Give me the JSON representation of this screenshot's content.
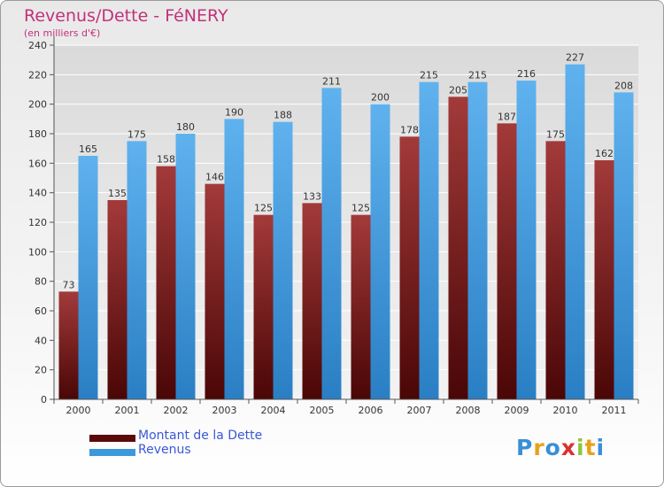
{
  "title": "Revenus/Dette - FéNERY",
  "subtitle": "(en milliers d'€)",
  "chart_data": {
    "type": "bar",
    "title": "Revenus/Dette - FéNERY",
    "ylabel": "(en milliers d'€)",
    "xlabel": "",
    "ylim": [
      0,
      240
    ],
    "yticks": [
      0,
      20,
      40,
      60,
      80,
      100,
      120,
      140,
      160,
      180,
      200,
      220,
      240
    ],
    "grid": true,
    "categories": [
      "2000",
      "2001",
      "2002",
      "2003",
      "2004",
      "2005",
      "2006",
      "2007",
      "2008",
      "2009",
      "2010",
      "2011"
    ],
    "series": [
      {
        "name": "Montant de la Dette",
        "color": "#7a1a1a",
        "values": [
          73,
          135,
          158,
          146,
          125,
          133,
          125,
          178,
          205,
          187,
          175,
          162
        ]
      },
      {
        "name": "Revenus",
        "color": "#3d98dc",
        "values": [
          165,
          175,
          180,
          190,
          188,
          211,
          200,
          215,
          215,
          216,
          227,
          208
        ]
      }
    ],
    "legend_position": "bottom-left"
  },
  "legend": [
    {
      "label": "Montant de la Dette",
      "color": "#5a0a0a"
    },
    {
      "label": "Revenus",
      "color": "#3d98dc"
    }
  ],
  "logo": {
    "letters": [
      "P",
      "r",
      "o",
      "x",
      "i",
      "t",
      "i"
    ],
    "colors": [
      "#3a8fd6",
      "#e8a21a",
      "#3a8fd6",
      "#d9302f",
      "#8cc63f",
      "#e8a21a",
      "#3a8fd6"
    ]
  }
}
